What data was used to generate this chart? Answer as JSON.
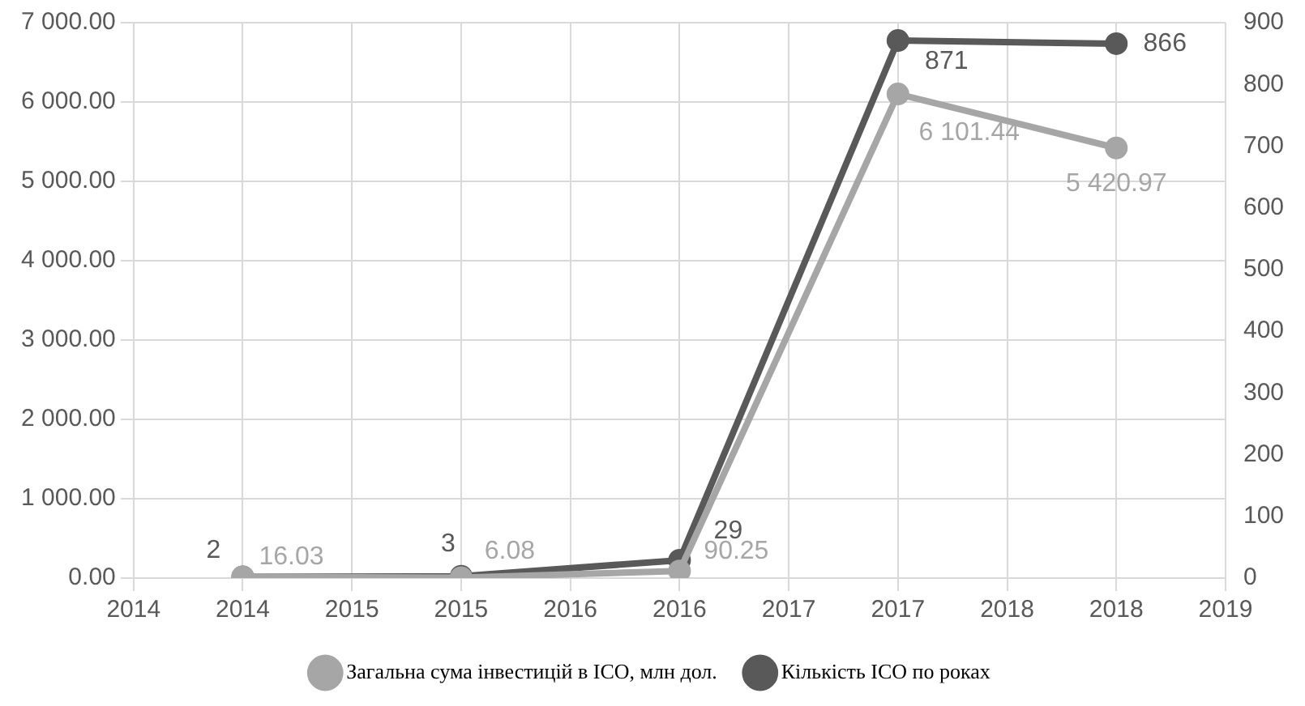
{
  "chart_data": {
    "type": "line",
    "x": [
      2014,
      2015,
      2016,
      2017,
      2018
    ],
    "xlim": [
      2013.5,
      2018.5
    ],
    "xticks": [
      {
        "value": 2013.5,
        "label": "2014"
      },
      {
        "value": 2014,
        "label": "2014"
      },
      {
        "value": 2014.5,
        "label": "2015"
      },
      {
        "value": 2015,
        "label": "2015"
      },
      {
        "value": 2015.5,
        "label": "2016"
      },
      {
        "value": 2016,
        "label": "2016"
      },
      {
        "value": 2016.5,
        "label": "2017"
      },
      {
        "value": 2017,
        "label": "2017"
      },
      {
        "value": 2017.5,
        "label": "2018"
      },
      {
        "value": 2018,
        "label": "2018"
      },
      {
        "value": 2018.5,
        "label": "2019"
      }
    ],
    "ylim": [
      0,
      7000
    ],
    "yticks": [
      {
        "value": 0,
        "label": "0.00"
      },
      {
        "value": 1000,
        "label": "1 000.00"
      },
      {
        "value": 2000,
        "label": "2 000.00"
      },
      {
        "value": 3000,
        "label": "3 000.00"
      },
      {
        "value": 4000,
        "label": "4 000.00"
      },
      {
        "value": 5000,
        "label": "5 000.00"
      },
      {
        "value": 6000,
        "label": "6 000.00"
      },
      {
        "value": 7000,
        "label": "7 000.00"
      }
    ],
    "y2lim": [
      0,
      900
    ],
    "y2ticks": [
      0,
      100,
      200,
      300,
      400,
      500,
      600,
      700,
      800,
      900
    ],
    "series": [
      {
        "name": "Загальна сума інвестицій в ICO, млн дол.",
        "color": "#a6a6a6",
        "values": [
          16.03,
          6.08,
          90.25,
          6101.44,
          5420.97
        ],
        "value_labels": [
          "16.03",
          "6.08",
          "90.25",
          "6 101.44",
          "5 420.97"
        ]
      },
      {
        "name": "Кількість ICO по роках",
        "color": "#595959",
        "axis": "y2",
        "values": [
          2,
          3,
          29,
          871,
          866
        ],
        "value_labels": [
          "2",
          "3",
          "29",
          "871",
          "866"
        ]
      }
    ],
    "grid": true,
    "legend": "bottom",
    "marker": "circle",
    "line_style": "solid"
  }
}
